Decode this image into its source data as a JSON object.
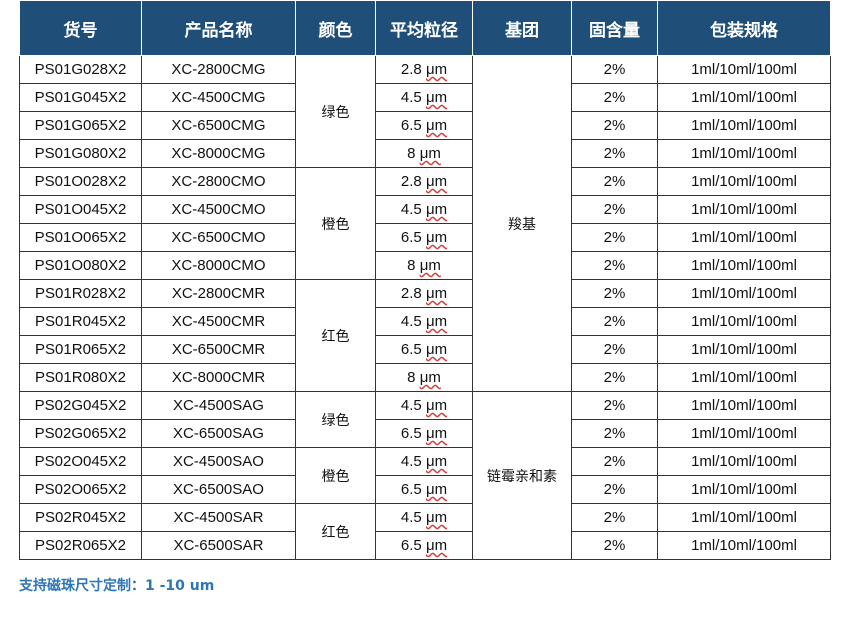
{
  "table": {
    "headers": [
      "货号",
      "产品名称",
      "颜色",
      "平均粒径",
      "基团",
      "固含量",
      "包装规格"
    ],
    "rows": [
      {
        "sku": "PS01G028X2",
        "name": "XC-2800CMG",
        "color": "绿色",
        "size_num": "2.8",
        "unit": "μm",
        "group": "羧基",
        "solid": "2%",
        "pack": "1ml/10ml/100ml"
      },
      {
        "sku": "PS01G045X2",
        "name": "XC-4500CMG",
        "color": "绿色",
        "size_num": "4.5",
        "unit": "μm",
        "group": "羧基",
        "solid": "2%",
        "pack": "1ml/10ml/100ml"
      },
      {
        "sku": "PS01G065X2",
        "name": "XC-6500CMG",
        "color": "绿色",
        "size_num": "6.5",
        "unit": "μm",
        "group": "羧基",
        "solid": "2%",
        "pack": "1ml/10ml/100ml"
      },
      {
        "sku": "PS01G080X2",
        "name": "XC-8000CMG",
        "color": "绿色",
        "size_num": "8",
        "unit": "μm",
        "group": "羧基",
        "solid": "2%",
        "pack": "1ml/10ml/100ml"
      },
      {
        "sku": "PS01O028X2",
        "name": "XC-2800CMO",
        "color": "橙色",
        "size_num": "2.8",
        "unit": "μm",
        "group": "羧基",
        "solid": "2%",
        "pack": "1ml/10ml/100ml"
      },
      {
        "sku": "PS01O045X2",
        "name": "XC-4500CMO",
        "color": "橙色",
        "size_num": "4.5",
        "unit": "μm",
        "group": "羧基",
        "solid": "2%",
        "pack": "1ml/10ml/100ml"
      },
      {
        "sku": "PS01O065X2",
        "name": "XC-6500CMO",
        "color": "橙色",
        "size_num": "6.5",
        "unit": "μm",
        "group": "羧基",
        "solid": "2%",
        "pack": "1ml/10ml/100ml"
      },
      {
        "sku": "PS01O080X2",
        "name": "XC-8000CMO",
        "color": "橙色",
        "size_num": "8",
        "unit": "μm",
        "group": "羧基",
        "solid": "2%",
        "pack": "1ml/10ml/100ml"
      },
      {
        "sku": "PS01R028X2",
        "name": "XC-2800CMR",
        "color": "红色",
        "size_num": "2.8",
        "unit": "μm",
        "group": "羧基",
        "solid": "2%",
        "pack": "1ml/10ml/100ml"
      },
      {
        "sku": "PS01R045X2",
        "name": "XC-4500CMR",
        "color": "红色",
        "size_num": "4.5",
        "unit": "μm",
        "group": "羧基",
        "solid": "2%",
        "pack": "1ml/10ml/100ml"
      },
      {
        "sku": "PS01R065X2",
        "name": "XC-6500CMR",
        "color": "红色",
        "size_num": "6.5",
        "unit": "μm",
        "group": "羧基",
        "solid": "2%",
        "pack": "1ml/10ml/100ml"
      },
      {
        "sku": "PS01R080X2",
        "name": "XC-8000CMR",
        "color": "红色",
        "size_num": "8",
        "unit": "μm",
        "group": "羧基",
        "solid": "2%",
        "pack": "1ml/10ml/100ml"
      },
      {
        "sku": "PS02G045X2",
        "name": "XC-4500SAG",
        "color": "绿色",
        "size_num": "4.5",
        "unit": "μm",
        "group": "链霉亲和素",
        "solid": "2%",
        "pack": "1ml/10ml/100ml"
      },
      {
        "sku": "PS02G065X2",
        "name": "XC-6500SAG",
        "color": "绿色",
        "size_num": "6.5",
        "unit": "μm",
        "group": "链霉亲和素",
        "solid": "2%",
        "pack": "1ml/10ml/100ml"
      },
      {
        "sku": "PS02O045X2",
        "name": "XC-4500SAO",
        "color": "橙色",
        "size_num": "4.5",
        "unit": "μm",
        "group": "链霉亲和素",
        "solid": "2%",
        "pack": "1ml/10ml/100ml"
      },
      {
        "sku": "PS02O065X2",
        "name": "XC-6500SAO",
        "color": "橙色",
        "size_num": "6.5",
        "unit": "μm",
        "group": "链霉亲和素",
        "solid": "2%",
        "pack": "1ml/10ml/100ml"
      },
      {
        "sku": "PS02R045X2",
        "name": "XC-4500SAR",
        "color": "红色",
        "size_num": "4.5",
        "unit": "μm",
        "group": "链霉亲和素",
        "solid": "2%",
        "pack": "1ml/10ml/100ml"
      },
      {
        "sku": "PS02R065X2",
        "name": "XC-6500SAR",
        "color": "红色",
        "size_num": "6.5",
        "unit": "μm",
        "group": "链霉亲和素",
        "solid": "2%",
        "pack": "1ml/10ml/100ml"
      }
    ]
  },
  "note": "支持磁珠尺寸定制：1 -10 um",
  "colors": {
    "header_bg": "#1f4e79",
    "note_text": "#2e75b6"
  }
}
